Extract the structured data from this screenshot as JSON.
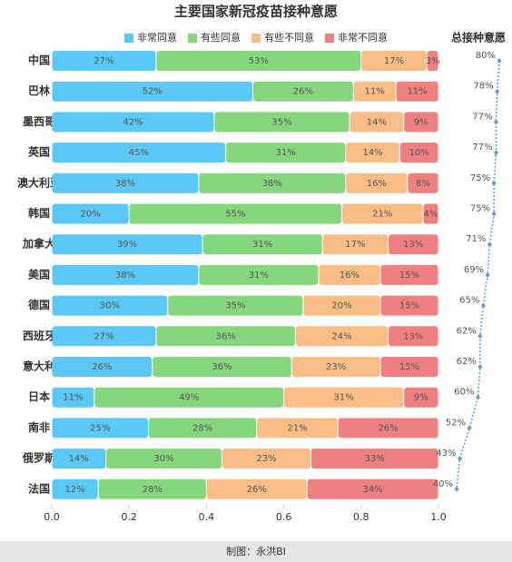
{
  "chart_data": [
    {
      "type": "bar",
      "horizontal": true,
      "stacked": true,
      "title": "主要国家新冠疫苗接种意愿",
      "categories": [
        "中国",
        "巴林",
        "墨西哥",
        "英国",
        "澳大利亚",
        "韩国",
        "加拿大",
        "美国",
        "德国",
        "西班牙",
        "意大利",
        "日本",
        "南非",
        "俄罗斯",
        "法国"
      ],
      "series": [
        {
          "name": "非常同意",
          "color": "#5bc8f5",
          "values": [
            0.27,
            0.52,
            0.42,
            0.45,
            0.38,
            0.2,
            0.39,
            0.38,
            0.3,
            0.27,
            0.26,
            0.11,
            0.25,
            0.14,
            0.12
          ],
          "value_labels": [
            "27%",
            "52%",
            "42%",
            "45%",
            "38%",
            "20%",
            "39%",
            "38%",
            "30%",
            "27%",
            "26%",
            "11%",
            "25%",
            "14%",
            "12%"
          ]
        },
        {
          "name": "有些同意",
          "color": "#86d67e",
          "values": [
            0.53,
            0.26,
            0.35,
            0.31,
            0.38,
            0.55,
            0.31,
            0.31,
            0.35,
            0.36,
            0.36,
            0.49,
            0.28,
            0.3,
            0.28
          ],
          "value_labels": [
            "53%",
            "26%",
            "35%",
            "31%",
            "38%",
            "55%",
            "31%",
            "31%",
            "35%",
            "36%",
            "36%",
            "49%",
            "28%",
            "30%",
            "28%"
          ]
        },
        {
          "name": "有些不同意",
          "color": "#f9bd85",
          "values": [
            0.17,
            0.11,
            0.14,
            0.14,
            0.16,
            0.21,
            0.17,
            0.16,
            0.2,
            0.24,
            0.23,
            0.31,
            0.21,
            0.23,
            0.26
          ],
          "value_labels": [
            "17%",
            "11%",
            "14%",
            "14%",
            "16%",
            "21%",
            "17%",
            "16%",
            "20%",
            "24%",
            "23%",
            "31%",
            "21%",
            "23%",
            "26%"
          ]
        },
        {
          "name": "非常不同意",
          "color": "#f08080",
          "values": [
            0.03,
            0.11,
            0.09,
            0.1,
            0.08,
            0.04,
            0.13,
            0.15,
            0.15,
            0.13,
            0.15,
            0.09,
            0.26,
            0.33,
            0.34
          ],
          "value_labels": [
            "3%",
            "11%",
            "9%",
            "10%",
            "8%",
            "4%",
            "13%",
            "15%",
            "15%",
            "13%",
            "15%",
            "9%",
            "26%",
            "33%",
            "34%"
          ]
        }
      ],
      "xlim": [
        0,
        1
      ],
      "xticks": [
        {
          "value": 0,
          "label": "0.0"
        },
        0.2,
        0.4,
        0.6,
        0.8,
        {
          "value": 1,
          "label": "1.0"
        }
      ]
    },
    {
      "type": "line",
      "title": "总接种意愿",
      "color": "#5b9bd5",
      "values": [
        80,
        78,
        77,
        77,
        75,
        75,
        71,
        69,
        65,
        62,
        62,
        60,
        52,
        43,
        40
      ],
      "value_labels": [
        "80%",
        "78%",
        "77%",
        "77%",
        "75%",
        "75%",
        "71%",
        "69%",
        "65%",
        "62%",
        "62%",
        "60%",
        "52%",
        "43%",
        "40%"
      ]
    }
  ],
  "footer": "制图：永洪BI"
}
